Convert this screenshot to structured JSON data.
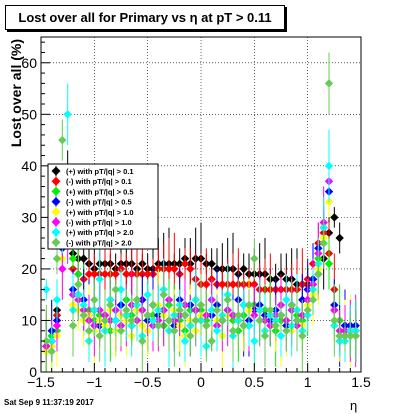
{
  "title": "Lost over all for Primary vs   η at pT > 0.11",
  "footer": "Sat Sep  9 11:37:19 2017",
  "chart_data": {
    "type": "scatter",
    "xlabel": "η",
    "ylabel": "Lost over all (%)",
    "xlim": [
      -1.5,
      1.5
    ],
    "ylim": [
      0,
      65
    ],
    "x_ticks": [
      "−1.5",
      "−1",
      "−0.5",
      "0",
      "0.5",
      "1",
      "1.5"
    ],
    "y_ticks": [
      "0",
      "10",
      "20",
      "30",
      "40",
      "50",
      "60"
    ],
    "grid": true,
    "legend_position": "middle-left",
    "colors": {
      "black": "#000000",
      "red": "#ff0000",
      "green": "#00ee00",
      "blue": "#0000ff",
      "yellow": "#ffff00",
      "magenta": "#ff00ff",
      "cyan": "#00ffff",
      "lightgreen": "#66cc55"
    },
    "series": [
      {
        "name": "(+) with pT/|q| > 0.1",
        "color": "#000000",
        "x": [
          -1.45,
          -1.4,
          -1.35,
          -1.3,
          -1.25,
          -1.2,
          -1.15,
          -1.1,
          -1.05,
          -1.0,
          -0.95,
          -0.9,
          -0.85,
          -0.8,
          -0.75,
          -0.7,
          -0.65,
          -0.6,
          -0.55,
          -0.5,
          -0.45,
          -0.4,
          -0.35,
          -0.3,
          -0.25,
          -0.2,
          -0.15,
          -0.1,
          -0.05,
          0.0,
          0.05,
          0.1,
          0.15,
          0.2,
          0.25,
          0.3,
          0.35,
          0.4,
          0.45,
          0.5,
          0.55,
          0.6,
          0.65,
          0.7,
          0.75,
          0.8,
          0.85,
          0.9,
          0.95,
          1.0,
          1.05,
          1.1,
          1.15,
          1.2,
          1.25,
          1.3,
          1.35,
          1.4,
          1.45
        ],
        "y": [
          5,
          6,
          12,
          28,
          37,
          23,
          22,
          22,
          21,
          20,
          21,
          21,
          21,
          20,
          21,
          21,
          21,
          20,
          21,
          20,
          20,
          21,
          21,
          21,
          21,
          21,
          22,
          21,
          22,
          22,
          21,
          21,
          20,
          20,
          20,
          20,
          19,
          20,
          19,
          19,
          19,
          19,
          18,
          18,
          19,
          18,
          18,
          17,
          17,
          17,
          18,
          19,
          22,
          27,
          30,
          26,
          9,
          8,
          8
        ]
      },
      {
        "name": "(-) with pT/|q| > 0.1",
        "color": "#ff0000",
        "x": [
          -1.45,
          -1.4,
          -1.35,
          -1.3,
          -1.25,
          -1.2,
          -1.15,
          -1.1,
          -1.05,
          -1.0,
          -0.95,
          -0.9,
          -0.85,
          -0.8,
          -0.75,
          -0.7,
          -0.65,
          -0.6,
          -0.55,
          -0.5,
          -0.45,
          -0.4,
          -0.35,
          -0.3,
          -0.25,
          -0.2,
          -0.15,
          -0.1,
          -0.05,
          0.0,
          0.05,
          0.1,
          0.15,
          0.2,
          0.25,
          0.3,
          0.35,
          0.4,
          0.45,
          0.5,
          0.55,
          0.6,
          0.65,
          0.7,
          0.75,
          0.8,
          0.85,
          0.9,
          0.95,
          1.0,
          1.05,
          1.1,
          1.15,
          1.2,
          1.25,
          1.3,
          1.35,
          1.4,
          1.45
        ],
        "y": [
          5,
          6,
          11,
          26,
          31,
          20,
          19,
          18,
          19,
          19,
          19,
          19,
          19,
          19,
          20,
          19,
          19,
          19,
          19,
          19,
          19,
          20,
          20,
          20,
          20,
          19,
          21,
          20,
          18,
          17,
          17,
          18,
          17,
          17,
          17,
          17,
          17,
          17,
          17,
          17,
          16,
          16,
          16,
          16,
          16,
          16,
          16,
          16,
          17,
          18,
          21,
          25,
          27,
          23,
          16,
          6,
          7,
          7,
          7
        ]
      },
      {
        "name": "(+) with pT/|q| > 0.5",
        "color": "#00ee00",
        "x": [
          -1.45,
          -1.4,
          -1.35,
          -1.3,
          -1.25,
          -1.2,
          -1.15,
          -1.1,
          -1.05,
          -1.0,
          -0.95,
          -0.9,
          -0.85,
          -0.8,
          -0.75,
          -0.7,
          -0.65,
          -0.6,
          -0.55,
          -0.5,
          -0.45,
          -0.4,
          -0.35,
          -0.3,
          -0.25,
          -0.2,
          -0.15,
          -0.1,
          -0.05,
          0.0,
          0.05,
          0.1,
          0.15,
          0.2,
          0.25,
          0.3,
          0.35,
          0.4,
          0.45,
          0.5,
          0.55,
          0.6,
          0.65,
          0.7,
          0.75,
          0.8,
          0.85,
          0.9,
          0.95,
          1.0,
          1.05,
          1.1,
          1.15,
          1.2,
          1.25,
          1.3,
          1.35,
          1.4,
          1.45
        ],
        "y": [
          4,
          7,
          8,
          26,
          35,
          22,
          19,
          14,
          12,
          10,
          11,
          10,
          8,
          10,
          13,
          14,
          11,
          14,
          12,
          10,
          11,
          12,
          9,
          13,
          11,
          10,
          8,
          12,
          14,
          12,
          10,
          11,
          9,
          10,
          12,
          10,
          8,
          11,
          9,
          13,
          10,
          12,
          11,
          8,
          10,
          9,
          12,
          11,
          10,
          14,
          17,
          22,
          25,
          21,
          12,
          10,
          8,
          8,
          8
        ]
      },
      {
        "name": "(-) with pT/|q| > 0.5",
        "color": "#0000ff",
        "x": [
          -1.45,
          -1.4,
          -1.35,
          -1.3,
          -1.25,
          -1.2,
          -1.15,
          -1.1,
          -1.05,
          -1.0,
          -0.95,
          -0.9,
          -0.85,
          -0.8,
          -0.75,
          -0.7,
          -0.65,
          -0.6,
          -0.55,
          -0.5,
          -0.45,
          -0.4,
          -0.35,
          -0.3,
          -0.25,
          -0.2,
          -0.15,
          -0.1,
          -0.05,
          0.0,
          0.05,
          0.1,
          0.15,
          0.2,
          0.25,
          0.3,
          0.35,
          0.4,
          0.45,
          0.5,
          0.55,
          0.6,
          0.65,
          0.7,
          0.75,
          0.8,
          0.85,
          0.9,
          0.95,
          1.0,
          1.05,
          1.1,
          1.15,
          1.2,
          1.25,
          1.3,
          1.35,
          1.4,
          1.45
        ],
        "y": [
          5,
          8,
          10,
          24,
          30,
          16,
          15,
          14,
          11,
          12,
          9,
          11,
          14,
          10,
          13,
          11,
          9,
          12,
          14,
          10,
          13,
          11,
          12,
          10,
          9,
          14,
          11,
          13,
          12,
          10,
          9,
          11,
          13,
          10,
          12,
          11,
          14,
          9,
          10,
          12,
          13,
          11,
          10,
          12,
          11,
          9,
          13,
          10,
          14,
          16,
          18,
          24,
          28,
          35,
          13,
          7,
          9,
          9,
          9
        ]
      },
      {
        "name": "(+) with pT/|q| > 1.0",
        "color": "#ffff00",
        "x": [
          -1.45,
          -1.4,
          -1.35,
          -1.3,
          -1.25,
          -1.2,
          -1.15,
          -1.1,
          -1.05,
          -1.0,
          -0.95,
          -0.9,
          -0.85,
          -0.8,
          -0.75,
          -0.7,
          -0.65,
          -0.6,
          -0.55,
          -0.5,
          -0.45,
          -0.4,
          -0.35,
          -0.3,
          -0.25,
          -0.2,
          -0.15,
          -0.1,
          -0.05,
          0.0,
          0.05,
          0.1,
          0.15,
          0.2,
          0.25,
          0.3,
          0.35,
          0.4,
          0.45,
          0.5,
          0.55,
          0.6,
          0.65,
          0.7,
          0.75,
          0.8,
          0.85,
          0.9,
          0.95,
          1.0,
          1.05,
          1.1,
          1.15,
          1.2,
          1.25,
          1.3,
          1.35,
          1.4,
          1.45
        ],
        "y": [
          4,
          5,
          7,
          22,
          33,
          13,
          12,
          10,
          11,
          8,
          10,
          9,
          12,
          8,
          11,
          10,
          7,
          12,
          9,
          8,
          10,
          13,
          11,
          8,
          12,
          9,
          7,
          10,
          8,
          11,
          9,
          12,
          10,
          7,
          11,
          8,
          10,
          9,
          12,
          6,
          10,
          8,
          11,
          9,
          7,
          10,
          8,
          12,
          9,
          13,
          15,
          20,
          26,
          33,
          10,
          7,
          8,
          8,
          8
        ]
      },
      {
        "name": "(-) with pT/|q| > 1.0",
        "color": "#ff00ff",
        "x": [
          -1.45,
          -1.4,
          -1.35,
          -1.3,
          -1.25,
          -1.2,
          -1.15,
          -1.1,
          -1.05,
          -1.0,
          -0.95,
          -0.9,
          -0.85,
          -0.8,
          -0.75,
          -0.7,
          -0.65,
          -0.6,
          -0.55,
          -0.5,
          -0.45,
          -0.4,
          -0.35,
          -0.3,
          -0.25,
          -0.2,
          -0.15,
          -0.1,
          -0.05,
          0.0,
          0.05,
          0.1,
          0.15,
          0.2,
          0.25,
          0.3,
          0.35,
          0.4,
          0.45,
          0.5,
          0.55,
          0.6,
          0.65,
          0.7,
          0.75,
          0.8,
          0.85,
          0.9,
          0.95,
          1.0,
          1.05,
          1.1,
          1.15,
          1.2,
          1.25,
          1.3,
          1.35,
          1.4,
          1.45
        ],
        "y": [
          5,
          6,
          9,
          20,
          28,
          15,
          14,
          12,
          10,
          9,
          12,
          11,
          10,
          12,
          9,
          11,
          13,
          10,
          12,
          11,
          9,
          10,
          12,
          14,
          10,
          11,
          13,
          9,
          12,
          10,
          11,
          14,
          9,
          10,
          12,
          11,
          10,
          13,
          9,
          11,
          12,
          10,
          9,
          11,
          13,
          10,
          12,
          9,
          11,
          14,
          17,
          23,
          29,
          37,
          12,
          8,
          8,
          8,
          8
        ]
      },
      {
        "name": "(+) with pT/|q| > 2.0",
        "color": "#00ffff",
        "x": [
          -1.45,
          -1.4,
          -1.35,
          -1.3,
          -1.25,
          -1.2,
          -1.15,
          -1.1,
          -1.05,
          -1.0,
          -0.95,
          -0.9,
          -0.85,
          -0.8,
          -0.75,
          -0.7,
          -0.65,
          -0.6,
          -0.55,
          -0.5,
          -0.45,
          -0.4,
          -0.35,
          -0.3,
          -0.25,
          -0.2,
          -0.15,
          -0.1,
          -0.05,
          0.0,
          0.05,
          0.1,
          0.15,
          0.2,
          0.25,
          0.3,
          0.35,
          0.4,
          0.45,
          0.5,
          0.55,
          0.6,
          0.65,
          0.7,
          0.75,
          0.8,
          0.85,
          0.9,
          0.95,
          1.0,
          1.05,
          1.1,
          1.15,
          1.2,
          1.25,
          1.3,
          1.35,
          1.4,
          1.45
        ],
        "y": [
          16,
          6,
          14,
          28,
          50,
          12,
          15,
          13,
          6,
          12,
          18,
          8,
          14,
          10,
          16,
          11,
          9,
          13,
          7,
          15,
          10,
          12,
          16,
          8,
          11,
          13,
          6,
          9,
          14,
          10,
          5,
          12,
          8,
          11,
          15,
          7,
          10,
          13,
          9,
          6,
          12,
          8,
          11,
          10,
          7,
          14,
          9,
          12,
          8,
          11,
          16,
          21,
          28,
          40,
          9,
          6,
          6,
          8,
          8
        ]
      },
      {
        "name": "(-) with pT/|q| > 2.0",
        "color": "#66cc55",
        "x": [
          -1.45,
          -1.4,
          -1.35,
          -1.3,
          -1.25,
          -1.2,
          -1.15,
          -1.1,
          -1.05,
          -1.0,
          -0.95,
          -0.9,
          -0.85,
          -0.8,
          -0.75,
          -0.7,
          -0.65,
          -0.6,
          -0.55,
          -0.5,
          -0.45,
          -0.4,
          -0.35,
          -0.3,
          -0.25,
          -0.2,
          -0.15,
          -0.1,
          -0.05,
          0.0,
          0.05,
          0.1,
          0.15,
          0.2,
          0.25,
          0.3,
          0.35,
          0.4,
          0.45,
          0.5,
          0.55,
          0.6,
          0.65,
          0.7,
          0.75,
          0.8,
          0.85,
          0.9,
          0.95,
          1.0,
          1.05,
          1.1,
          1.15,
          1.2,
          1.25,
          1.3,
          1.35,
          1.4,
          1.45
        ],
        "y": [
          6,
          4,
          22,
          45,
          31,
          9,
          17,
          11,
          8,
          14,
          7,
          10,
          13,
          16,
          8,
          12,
          10,
          14,
          6,
          11,
          13,
          9,
          15,
          10,
          8,
          12,
          11,
          7,
          10,
          13,
          9,
          6,
          12,
          10,
          14,
          8,
          11,
          9,
          13,
          22,
          10,
          7,
          12,
          9,
          11,
          8,
          13,
          10,
          7,
          12,
          14,
          19,
          25,
          56,
          10,
          7,
          7,
          7,
          7
        ]
      }
    ]
  }
}
